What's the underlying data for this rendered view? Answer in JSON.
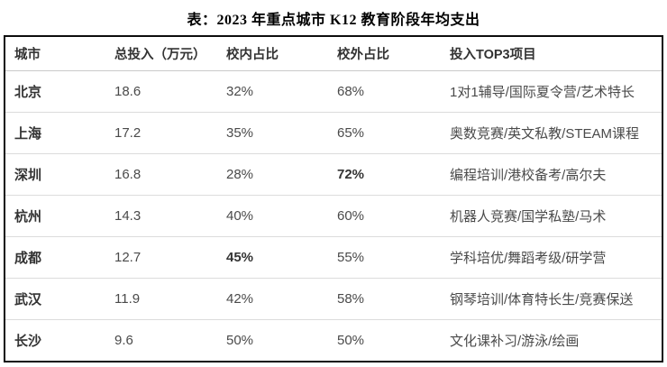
{
  "title": "表：2023 年重点城市 K12 教育阶段年均支出",
  "colors": {
    "outer_border": "#0d0d0d",
    "header_text": "#333333",
    "body_text": "#4a4a4a",
    "row_divider": "#dcdcdc",
    "background": "#ffffff"
  },
  "table": {
    "columns": [
      "城市",
      "总投入（万元）",
      "校内占比",
      "校外占比",
      "投入TOP3项目"
    ],
    "rows": [
      {
        "city": "北京",
        "total": "18.6",
        "in_school": "32%",
        "out_school": "68%",
        "top3": "1对1辅导/国际夏令营/艺术特长"
      },
      {
        "city": "上海",
        "total": "17.2",
        "in_school": "35%",
        "out_school": "65%",
        "top3": "奥数竞赛/英文私教/STEAM课程"
      },
      {
        "city": "深圳",
        "total": "16.8",
        "in_school": "28%",
        "out_school": "72%",
        "top3": "编程培训/港校备考/高尔夫"
      },
      {
        "city": "杭州",
        "total": "14.3",
        "in_school": "40%",
        "out_school": "60%",
        "top3": "机器人竞赛/国学私塾/马术"
      },
      {
        "city": "成都",
        "total": "12.7",
        "in_school": "45%",
        "out_school": "55%",
        "top3": "学科培优/舞蹈考级/研学营"
      },
      {
        "city": "武汉",
        "total": "11.9",
        "in_school": "42%",
        "out_school": "58%",
        "top3": "钢琴培训/体育特长生/竞赛保送"
      },
      {
        "city": "长沙",
        "total": "9.6",
        "in_school": "50%",
        "out_school": "50%",
        "top3": "文化课补习/游泳/绘画"
      }
    ]
  }
}
